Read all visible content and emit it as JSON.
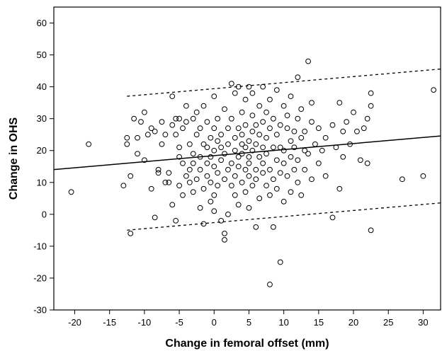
{
  "chart_data": {
    "type": "scatter",
    "xlabel": "Change in femoral offset (mm)",
    "ylabel": "Change in OHS",
    "xlim": [
      -23,
      32.5
    ],
    "ylim": [
      -30,
      65
    ],
    "xticks": [
      -20,
      -15,
      -10,
      -5,
      0,
      5,
      10,
      15,
      20,
      25,
      30
    ],
    "yticks": [
      -30,
      -20,
      -10,
      0,
      10,
      20,
      30,
      40,
      50,
      60
    ],
    "grid": false,
    "legend": "none",
    "fit_line": {
      "slope": 0.19,
      "intercept": 18.4
    },
    "prediction_band": {
      "upper_intercept": 39.4,
      "lower_intercept": -2.6,
      "style": "dashed"
    },
    "marker": "open-circle",
    "colors": {
      "line": "#000000",
      "marker_stroke": "#000000",
      "background": "#ffffff"
    },
    "points": [
      [
        -20.5,
        7
      ],
      [
        -18,
        22
      ],
      [
        -13,
        9
      ],
      [
        -12.5,
        22
      ],
      [
        -12.5,
        24
      ],
      [
        -12,
        12
      ],
      [
        -12,
        -6
      ],
      [
        -11.5,
        30
      ],
      [
        -11,
        24
      ],
      [
        -11,
        19
      ],
      [
        -10.5,
        29
      ],
      [
        -10,
        32
      ],
      [
        -10,
        17
      ],
      [
        -9.5,
        25
      ],
      [
        -9,
        8
      ],
      [
        -9,
        27
      ],
      [
        -8.5,
        26
      ],
      [
        -8.5,
        -1
      ],
      [
        -8,
        14
      ],
      [
        -8,
        13
      ],
      [
        -7.5,
        29
      ],
      [
        -7.5,
        22
      ],
      [
        -7,
        10
      ],
      [
        -7,
        25
      ],
      [
        -6.5,
        13
      ],
      [
        -6.5,
        10
      ],
      [
        -6,
        37
      ],
      [
        -6,
        28
      ],
      [
        -6,
        3
      ],
      [
        -5.5,
        30
      ],
      [
        -5.5,
        25
      ],
      [
        -5.5,
        -2
      ],
      [
        -5,
        9
      ],
      [
        -5,
        21
      ],
      [
        -5,
        18
      ],
      [
        -5,
        30
      ],
      [
        -4.5,
        16
      ],
      [
        -4.5,
        27
      ],
      [
        -4.5,
        6
      ],
      [
        -4,
        34
      ],
      [
        -4,
        12
      ],
      [
        -4,
        29
      ],
      [
        -3.5,
        22
      ],
      [
        -3.5,
        14
      ],
      [
        -3.5,
        10
      ],
      [
        -3,
        30
      ],
      [
        -3,
        16
      ],
      [
        -3,
        7
      ],
      [
        -3,
        19
      ],
      [
        -2.5,
        25
      ],
      [
        -2.5,
        11
      ],
      [
        -2.5,
        32
      ],
      [
        -2,
        2
      ],
      [
        -2,
        18
      ],
      [
        -2,
        27
      ],
      [
        -2,
        14
      ],
      [
        -1.5,
        22
      ],
      [
        -1.5,
        8
      ],
      [
        -1.5,
        -3
      ],
      [
        -1.5,
        34
      ],
      [
        -1,
        21
      ],
      [
        -1,
        12
      ],
      [
        -1,
        29
      ],
      [
        -1,
        16
      ],
      [
        -0.5,
        4
      ],
      [
        -0.5,
        24
      ],
      [
        -0.5,
        18
      ],
      [
        -0.5,
        10
      ],
      [
        0,
        37
      ],
      [
        0,
        20
      ],
      [
        0,
        1
      ],
      [
        0,
        27
      ],
      [
        0,
        15
      ],
      [
        0,
        6
      ],
      [
        0.5,
        23
      ],
      [
        0.5,
        13
      ],
      [
        0.5,
        30
      ],
      [
        0.5,
        9
      ],
      [
        1,
        17
      ],
      [
        1,
        25
      ],
      [
        1,
        -2
      ],
      [
        1,
        21
      ],
      [
        1.5,
        11
      ],
      [
        1.5,
        33
      ],
      [
        1.5,
        19
      ],
      [
        1.5,
        -6
      ],
      [
        1.5,
        -8
      ],
      [
        2,
        14
      ],
      [
        2,
        27
      ],
      [
        2,
        0
      ],
      [
        2,
        22
      ],
      [
        2.5,
        41
      ],
      [
        2.5,
        16
      ],
      [
        2.5,
        9
      ],
      [
        2.5,
        30
      ],
      [
        3,
        20
      ],
      [
        3,
        6
      ],
      [
        3,
        24
      ],
      [
        3,
        38
      ],
      [
        3,
        12
      ],
      [
        3.5,
        18
      ],
      [
        3.5,
        40
      ],
      [
        3.5,
        27
      ],
      [
        3.5,
        3
      ],
      [
        3.5,
        15
      ],
      [
        4,
        22
      ],
      [
        4,
        32
      ],
      [
        4,
        10
      ],
      [
        4,
        19
      ],
      [
        4,
        25
      ],
      [
        4.5,
        14
      ],
      [
        4.5,
        36
      ],
      [
        4.5,
        21
      ],
      [
        4.5,
        7
      ],
      [
        4.5,
        28
      ],
      [
        5,
        12
      ],
      [
        5,
        18
      ],
      [
        5,
        40
      ],
      [
        5,
        23
      ],
      [
        5,
        2
      ],
      [
        5,
        16
      ],
      [
        5.5,
        26
      ],
      [
        5.5,
        31
      ],
      [
        5.5,
        9
      ],
      [
        5.5,
        20
      ],
      [
        5.5,
        38
      ],
      [
        6,
        14
      ],
      [
        6,
        22
      ],
      [
        6,
        28
      ],
      [
        6,
        -4
      ],
      [
        6,
        11
      ],
      [
        6.5,
        18
      ],
      [
        6.5,
        25
      ],
      [
        6.5,
        34
      ],
      [
        6.5,
        5
      ],
      [
        7,
        21
      ],
      [
        7,
        13
      ],
      [
        7,
        29
      ],
      [
        7,
        40
      ],
      [
        7,
        16
      ],
      [
        7.5,
        9
      ],
      [
        7.5,
        24
      ],
      [
        7.5,
        32
      ],
      [
        7.5,
        19
      ],
      [
        8,
        6
      ],
      [
        8,
        27
      ],
      [
        8,
        14
      ],
      [
        8,
        -22
      ],
      [
        8,
        36
      ],
      [
        8.5,
        21
      ],
      [
        8.5,
        11
      ],
      [
        8.5,
        30
      ],
      [
        8.5,
        -4
      ],
      [
        9,
        17
      ],
      [
        9,
        25
      ],
      [
        9,
        8
      ],
      [
        9,
        39
      ],
      [
        9.5,
        13
      ],
      [
        9.5,
        21
      ],
      [
        9.5,
        28
      ],
      [
        9.5,
        -15
      ],
      [
        10,
        20
      ],
      [
        10,
        34
      ],
      [
        10,
        4
      ],
      [
        10,
        16
      ],
      [
        10.5,
        27
      ],
      [
        10.5,
        12
      ],
      [
        10.5,
        31
      ],
      [
        11,
        23
      ],
      [
        11,
        7
      ],
      [
        11,
        18
      ],
      [
        11,
        37
      ],
      [
        11.5,
        14
      ],
      [
        11.5,
        26
      ],
      [
        11.5,
        21
      ],
      [
        12,
        30
      ],
      [
        12,
        10
      ],
      [
        12,
        43
      ],
      [
        12,
        17
      ],
      [
        12.5,
        24
      ],
      [
        12.5,
        6
      ],
      [
        12.5,
        33
      ],
      [
        13,
        20
      ],
      [
        13,
        14
      ],
      [
        13,
        26
      ],
      [
        13.5,
        48
      ],
      [
        13.5,
        19
      ],
      [
        14,
        29
      ],
      [
        14,
        11
      ],
      [
        14,
        35
      ],
      [
        14.5,
        22
      ],
      [
        15,
        16
      ],
      [
        15,
        27
      ],
      [
        15.5,
        20
      ],
      [
        16,
        24
      ],
      [
        16,
        12
      ],
      [
        17,
        28
      ],
      [
        17,
        -1
      ],
      [
        17.5,
        21
      ],
      [
        18,
        8
      ],
      [
        18,
        35
      ],
      [
        18.5,
        18
      ],
      [
        18.5,
        26
      ],
      [
        19,
        29
      ],
      [
        19.5,
        22
      ],
      [
        20,
        32
      ],
      [
        20.5,
        26
      ],
      [
        21,
        17
      ],
      [
        21.5,
        27
      ],
      [
        22,
        16
      ],
      [
        22,
        30
      ],
      [
        22.5,
        38
      ],
      [
        22.5,
        34
      ],
      [
        22.5,
        -5
      ],
      [
        27,
        11
      ],
      [
        30,
        12
      ],
      [
        31.5,
        39
      ]
    ]
  }
}
